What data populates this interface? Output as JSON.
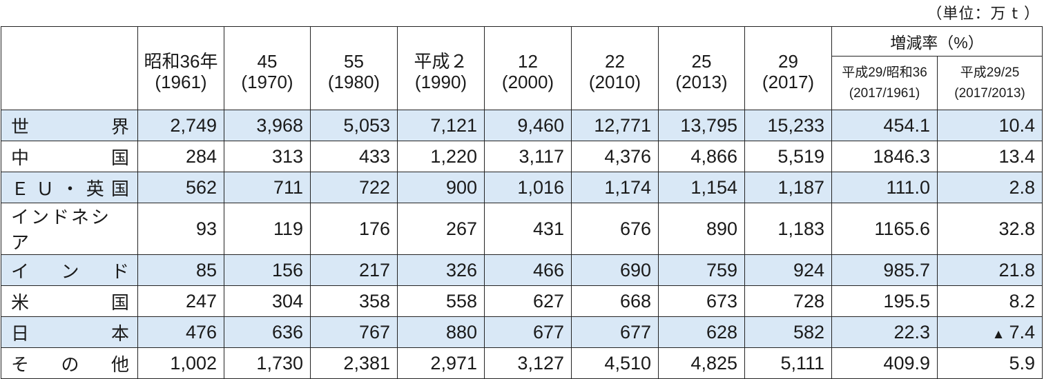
{
  "unit_note": "（単位：万 t ）",
  "header": {
    "years": [
      {
        "era": "昭和36年",
        "western": "(1961)"
      },
      {
        "era": "45",
        "western": "(1970)"
      },
      {
        "era": "55",
        "western": "(1980)"
      },
      {
        "era": "平成２",
        "western": "(1990)"
      },
      {
        "era": "12",
        "western": "(2000)"
      },
      {
        "era": "22",
        "western": "(2010)"
      },
      {
        "era": "25",
        "western": "(2013)"
      },
      {
        "era": "29",
        "western": "(2017)"
      }
    ],
    "rate_title": "増減率（%）",
    "rate_cols": [
      {
        "label": "平成29/昭和36",
        "years": "(2017/1961)"
      },
      {
        "label": "平成29/25",
        "years": "(2017/2013)"
      }
    ]
  },
  "rows": [
    {
      "name": [
        "世",
        "界"
      ],
      "values": [
        "2,749",
        "3,968",
        "5,053",
        "7,121",
        "9,460",
        "12,771",
        "13,795",
        "15,233"
      ],
      "rate1": "454.1",
      "rate2": "10.4"
    },
    {
      "name": [
        "中",
        "国"
      ],
      "values": [
        "284",
        "313",
        "433",
        "1,220",
        "3,117",
        "4,376",
        "4,866",
        "5,519"
      ],
      "rate1": "1846.3",
      "rate2": "13.4"
    },
    {
      "name": [
        "Ｅ",
        "Ｕ",
        "・",
        "英",
        "国"
      ],
      "values": [
        "562",
        "711",
        "722",
        "900",
        "1,016",
        "1,174",
        "1,154",
        "1,187"
      ],
      "rate1": "111.0",
      "rate2": "2.8"
    },
    {
      "name": [
        "インドネシア"
      ],
      "values": [
        "93",
        "119",
        "176",
        "267",
        "431",
        "676",
        "890",
        "1,183"
      ],
      "rate1": "1165.6",
      "rate2": "32.8"
    },
    {
      "name": [
        "イ",
        "ン",
        "ド"
      ],
      "values": [
        "85",
        "156",
        "217",
        "326",
        "466",
        "690",
        "759",
        "924"
      ],
      "rate1": "985.7",
      "rate2": "21.8"
    },
    {
      "name": [
        "米",
        "国"
      ],
      "values": [
        "247",
        "304",
        "358",
        "558",
        "627",
        "668",
        "673",
        "728"
      ],
      "rate1": "195.5",
      "rate2": "8.2"
    },
    {
      "name": [
        "日",
        "本"
      ],
      "values": [
        "476",
        "636",
        "767",
        "880",
        "677",
        "677",
        "628",
        "582"
      ],
      "rate1": "22.3",
      "rate2": "7.4",
      "rate2_prefix": "▲"
    },
    {
      "name": [
        "そ",
        "の",
        "他"
      ],
      "values": [
        "1,002",
        "1,730",
        "2,381",
        "2,971",
        "3,127",
        "4,510",
        "4,825",
        "5,111"
      ],
      "rate1": "409.9",
      "rate2": "5.9"
    }
  ]
}
